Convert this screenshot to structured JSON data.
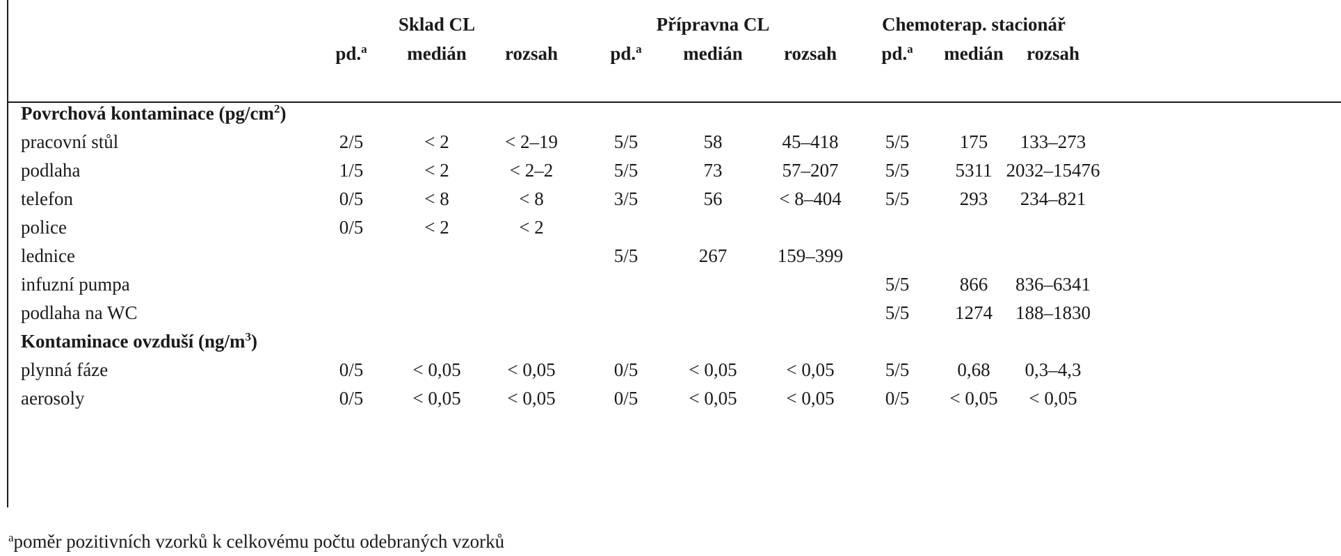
{
  "groups": [
    "Sklad CL",
    "Přípravna CL",
    "Chemoterap. stacionář"
  ],
  "subheaders": {
    "pd": "pd.",
    "pd_sup": "a",
    "median": "medián",
    "range": "rozsah"
  },
  "sections": [
    {
      "title": "Povrchová kontaminace (pg/cm",
      "title_sup": "2",
      "title_end": ")",
      "rows": [
        {
          "label": "pracovní stůl",
          "cells": [
            "2/5",
            "< 2",
            "< 2–19",
            "5/5",
            "58",
            "45–418",
            "5/5",
            "175",
            "133–273"
          ]
        },
        {
          "label": "podlaha",
          "cells": [
            "1/5",
            "< 2",
            "< 2–2",
            "5/5",
            "73",
            "57–207",
            "5/5",
            "5311",
            "2032–15476"
          ]
        },
        {
          "label": "telefon",
          "cells": [
            "0/5",
            "< 8",
            "< 8",
            "3/5",
            "56",
            "< 8–404",
            "5/5",
            "293",
            "234–821"
          ]
        },
        {
          "label": "police",
          "cells": [
            "0/5",
            "< 2",
            "< 2",
            "",
            "",
            "",
            "",
            "",
            ""
          ]
        },
        {
          "label": "lednice",
          "cells": [
            "",
            "",
            "",
            "5/5",
            "267",
            "159–399",
            "",
            "",
            ""
          ]
        },
        {
          "label": "infuzní pumpa",
          "cells": [
            "",
            "",
            "",
            "",
            "",
            "",
            "5/5",
            "866",
            "836–6341"
          ]
        },
        {
          "label": "podlaha na WC",
          "cells": [
            "",
            "",
            "",
            "",
            "",
            "",
            "5/5",
            "1274",
            "188–1830"
          ]
        }
      ]
    },
    {
      "title": "Kontaminace ovzduší (ng/m",
      "title_sup": "3",
      "title_end": ")",
      "rows": [
        {
          "label": "plynná fáze",
          "cells": [
            "0/5",
            "< 0,05",
            "< 0,05",
            "0/5",
            "< 0,05",
            "< 0,05",
            "5/5",
            "0,68",
            "0,3–4,3"
          ]
        },
        {
          "label": "aerosoly",
          "cells": [
            "0/5",
            "< 0,05",
            "< 0,05",
            "0/5",
            "< 0,05",
            "< 0,05",
            "0/5",
            "< 0,05",
            "< 0,05"
          ]
        }
      ]
    }
  ],
  "footnote": {
    "sup": "a",
    "text": "poměr pozitivních vzorků k celkovému počtu odebraných vzorků"
  }
}
